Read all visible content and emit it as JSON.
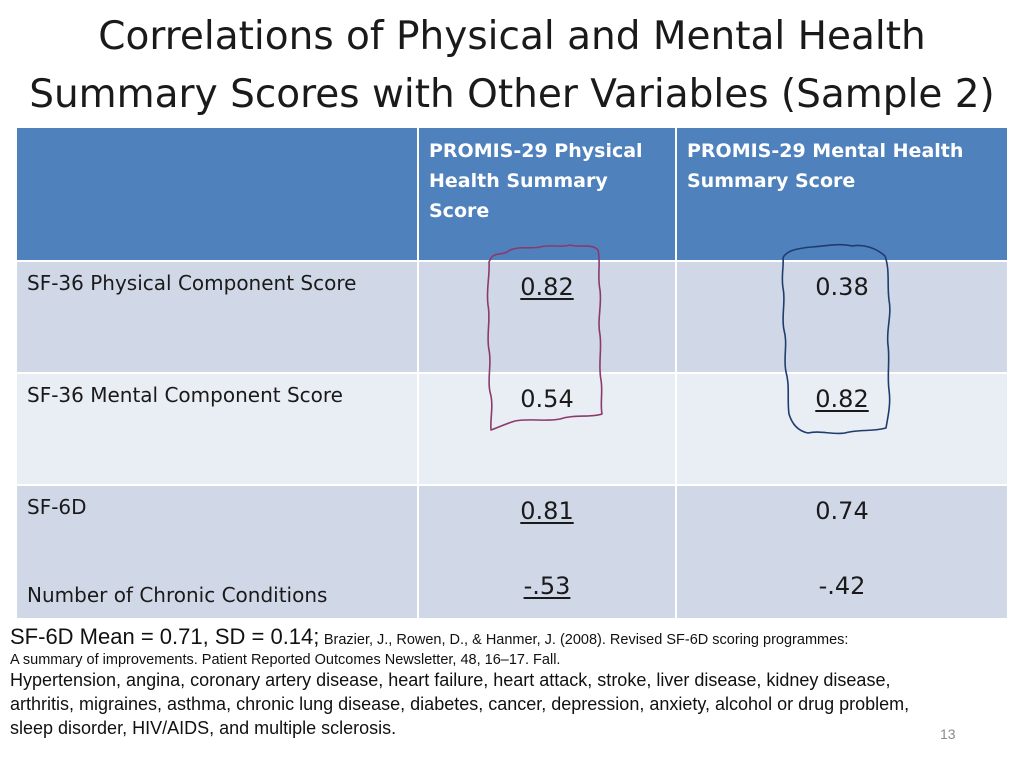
{
  "title": {
    "line1": "Correlations of Physical and Mental Health",
    "line2": "Summary Scores with Other Variables (Sample 2)"
  },
  "table": {
    "header": {
      "col0": "",
      "col1_line1": "PROMIS-29 Physical",
      "col1_line2": "Health Summary",
      "col1_line3": "Score",
      "col2_line1": "PROMIS-29 Mental Health",
      "col2_line2": "Summary Score"
    },
    "rows": [
      {
        "label": "SF-36 Physical Component Score",
        "physical": "0.82",
        "mental": "0.38"
      },
      {
        "label": "SF-36 Mental Component Score",
        "physical": "0.54",
        "mental": "0.82"
      },
      {
        "label": "SF-6D",
        "physical": "0.81",
        "mental": "0.74"
      },
      {
        "label": "Number of Chronic Conditions",
        "physical": "-.53",
        "mental": "-.42"
      }
    ]
  },
  "footnote": {
    "lead": "SF-6D Mean = 0.71, SD = 0.14;",
    "citation_part1": "Brazier, J., Rowen, D., & Hanmer, J. (2008). Revised SF-6D scoring programmes:",
    "citation_part2": "A summary of improvements. Patient Reported Outcomes Newsletter, 48, 16–17. Fall.",
    "conditions_line1": "Hypertension, angina, coronary artery disease, heart failure, heart attack, stroke, liver disease, kidney disease,",
    "conditions_line2": "arthritis, migraines, asthma, chronic lung disease, diabetes, cancer, depression, anxiety, alcohol or drug problem,",
    "conditions_line3": "sleep disorder, HIV/AIDS, and  multiple sclerosis."
  },
  "page_number": "13",
  "colors": {
    "header_bg": "#4f81bd",
    "row_dark": "#d0d8e8",
    "row_light": "#e9edf4",
    "annotation_purple": "#8b3a6b",
    "annotation_blue": "#1f3c6e"
  }
}
